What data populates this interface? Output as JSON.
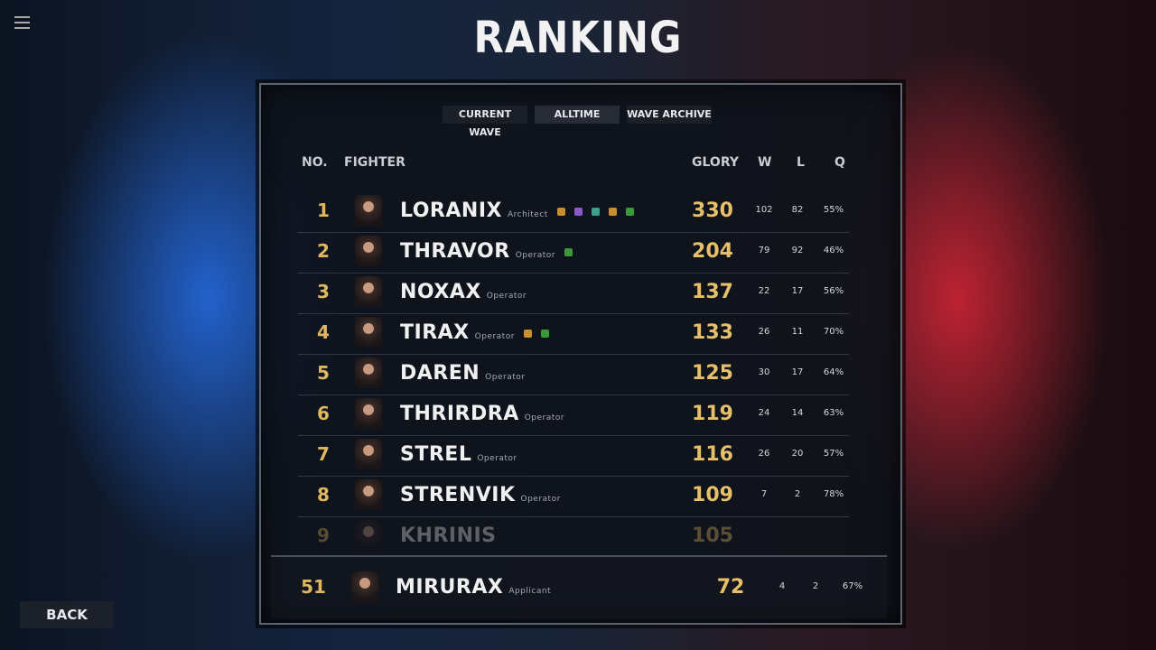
{
  "header": {
    "title": "RANKING"
  },
  "tabs": [
    "CURRENT WAVE",
    "ALLTIME",
    "WAVE ARCHIVE"
  ],
  "table": {
    "columns": [
      "NO.",
      "FIGHTER",
      "GLORY",
      "W",
      "L",
      "Q"
    ],
    "rows": [
      {
        "rank": "1",
        "name": "LORANIX",
        "role": "Architect",
        "glory": "330",
        "w": "102",
        "l": "82",
        "q": "55%",
        "badges": [
          "#c8902a",
          "#8a5ac8",
          "#3aa08a",
          "#c8902a",
          "#3a9a3a"
        ]
      },
      {
        "rank": "2",
        "name": "THRAVOR",
        "role": "Operator",
        "glory": "204",
        "w": "79",
        "l": "92",
        "q": "46%",
        "badges": [
          "#3a9a3a"
        ]
      },
      {
        "rank": "3",
        "name": "NOXAX",
        "role": "Operator",
        "glory": "137",
        "w": "22",
        "l": "17",
        "q": "56%",
        "badges": []
      },
      {
        "rank": "4",
        "name": "TIRAX",
        "role": "Operator",
        "glory": "133",
        "w": "26",
        "l": "11",
        "q": "70%",
        "badges": [
          "#c8902a",
          "#3a9a3a"
        ]
      },
      {
        "rank": "5",
        "name": "DAREN",
        "role": "Operator",
        "glory": "125",
        "w": "30",
        "l": "17",
        "q": "64%",
        "badges": []
      },
      {
        "rank": "6",
        "name": "THRIRDRA",
        "role": "Operator",
        "glory": "119",
        "w": "24",
        "l": "14",
        "q": "63%",
        "badges": []
      },
      {
        "rank": "7",
        "name": "STREL",
        "role": "Operator",
        "glory": "116",
        "w": "26",
        "l": "20",
        "q": "57%",
        "badges": []
      },
      {
        "rank": "8",
        "name": "STRENVIK",
        "role": "Operator",
        "glory": "109",
        "w": "7",
        "l": "2",
        "q": "78%",
        "badges": []
      },
      {
        "rank": "9",
        "name": "KHRINIS",
        "glory": "105",
        "badges": []
      }
    ],
    "own_row": {
      "rank": "51",
      "name": "MIRURAX",
      "role": "Applicant",
      "glory": "72",
      "w": "4",
      "l": "2",
      "q": "67%",
      "badges": []
    }
  },
  "back": "BACK"
}
